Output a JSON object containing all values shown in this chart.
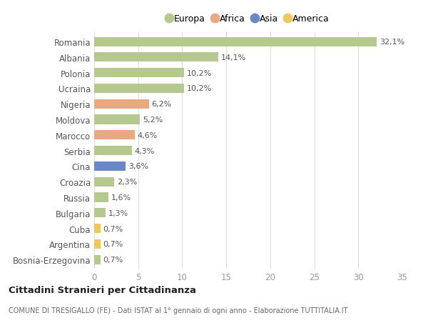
{
  "categories": [
    "Romania",
    "Albania",
    "Polonia",
    "Ucraina",
    "Nigeria",
    "Moldova",
    "Marocco",
    "Serbia",
    "Cina",
    "Croazia",
    "Russia",
    "Bulgaria",
    "Cuba",
    "Argentina",
    "Bosnia-Erzegovina"
  ],
  "values": [
    32.1,
    14.1,
    10.2,
    10.2,
    6.2,
    5.2,
    4.6,
    4.3,
    3.6,
    2.3,
    1.6,
    1.3,
    0.7,
    0.7,
    0.7
  ],
  "labels": [
    "32,1%",
    "14,1%",
    "10,2%",
    "10,2%",
    "6,2%",
    "5,2%",
    "4,6%",
    "4,3%",
    "3,6%",
    "2,3%",
    "1,6%",
    "1,3%",
    "0,7%",
    "0,7%",
    "0,7%"
  ],
  "continents": [
    "Europa",
    "Europa",
    "Europa",
    "Europa",
    "Africa",
    "Europa",
    "Africa",
    "Europa",
    "Asia",
    "Europa",
    "Europa",
    "Europa",
    "America",
    "America",
    "Europa"
  ],
  "continent_colors": {
    "Europa": "#b5c98e",
    "Africa": "#e8a882",
    "Asia": "#6a87c8",
    "America": "#f0c75e"
  },
  "legend_order": [
    "Europa",
    "Africa",
    "Asia",
    "America"
  ],
  "title": "Cittadini Stranieri per Cittadinanza",
  "subtitle": "COMUNE DI TRESIGALLO (FE) - Dati ISTAT al 1° gennaio di ogni anno - Elaborazione TUTTITALIA.IT",
  "xlim": [
    0,
    35
  ],
  "xticks": [
    0,
    5,
    10,
    15,
    20,
    25,
    30,
    35
  ],
  "bg_color": "#ffffff",
  "grid_color": "#dddddd",
  "bar_height": 0.6
}
